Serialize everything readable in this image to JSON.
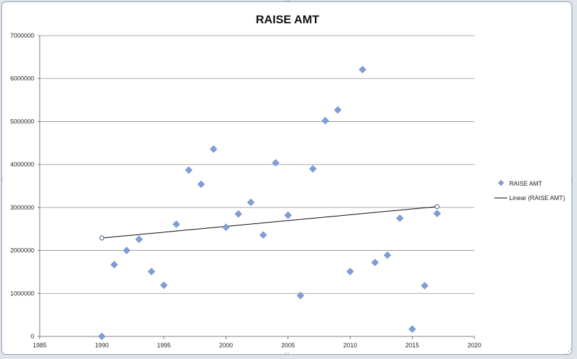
{
  "chart_data": {
    "type": "scatter",
    "title": "RAISE AMT",
    "xlabel": "",
    "ylabel": "",
    "xlim": [
      1985,
      2020
    ],
    "ylim": [
      0,
      7000000
    ],
    "xticks": [
      1985,
      1990,
      1995,
      2000,
      2005,
      2010,
      2015,
      2020
    ],
    "yticks": [
      0,
      1000000,
      2000000,
      3000000,
      4000000,
      5000000,
      6000000,
      7000000
    ],
    "grid": true,
    "legend_position": "right",
    "series": [
      {
        "name": "RAISE AMT",
        "marker": "diamond",
        "color": "#7f9fd8",
        "x": [
          1990,
          1991,
          1992,
          1993,
          1994,
          1995,
          1996,
          1997,
          1998,
          1999,
          2000,
          2001,
          2002,
          2003,
          2004,
          2005,
          2006,
          2007,
          2008,
          2009,
          2010,
          2011,
          2012,
          2013,
          2014,
          2015,
          2016,
          2017
        ],
        "y": [
          0,
          1670000,
          2000000,
          2260000,
          1510000,
          1190000,
          2610000,
          3870000,
          3540000,
          4360000,
          2540000,
          2850000,
          3120000,
          2360000,
          4040000,
          2820000,
          950000,
          3900000,
          5020000,
          5270000,
          1510000,
          6210000,
          1720000,
          1890000,
          2750000,
          170000,
          1180000,
          2860000
        ]
      }
    ],
    "trendline": {
      "name": "Linear (RAISE AMT)",
      "type": "linear",
      "color": "#000000",
      "x": [
        1990,
        2017
      ],
      "y": [
        2290000,
        3020000
      ]
    }
  }
}
